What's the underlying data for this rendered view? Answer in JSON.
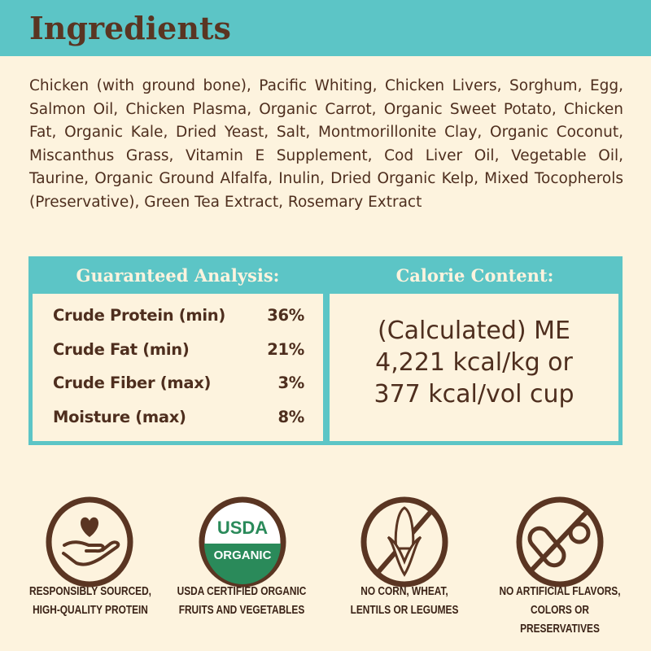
{
  "title": "Ingredients",
  "ingredients": "Chicken (with ground bone), Pacific Whiting, Chicken Livers, Sorghum, Egg, Salmon Oil, Chicken Plasma, Organic Carrot, Organic Sweet Potato, Chicken Fat, Organic Kale, Dried Yeast, Salt, Montmorillonite Clay, Organic Coconut, Miscanthus Grass, Vitamin E Supplement, Cod Liver Oil, Vegetable Oil, Taurine, Organic Ground Alfalfa, Inulin, Dried Organic Kelp, Mixed Tocopherols (Preservative), Green Tea Extract, Rosemary Extract",
  "analysis": {
    "heading": "Guaranteed Analysis:",
    "rows": [
      {
        "label": "Crude Protein (min)",
        "value": "36%"
      },
      {
        "label": "Crude Fat (min)",
        "value": "21%"
      },
      {
        "label": "Crude Fiber (max)",
        "value": "3%"
      },
      {
        "label": "Moisture (max)",
        "value": "8%"
      }
    ]
  },
  "calorie": {
    "heading": "Calorie Content:",
    "lines": [
      "(Calculated) ME",
      "4,221 kcal/kg or",
      "377 kcal/vol cup"
    ]
  },
  "badges": [
    {
      "icon": "heart-hand-icon",
      "line1": "RESPONSIBLY SOURCED,",
      "line2": "HIGH-QUALITY PROTEIN"
    },
    {
      "icon": "usda-organic-seal",
      "seal_top": "USDA",
      "seal_bottom": "ORGANIC",
      "line1": "USDA CERTIFIED ORGANIC",
      "line2": "FRUITS AND VEGETABLES"
    },
    {
      "icon": "no-corn-icon",
      "line1": "NO CORN, WHEAT,",
      "line2": "LENTILS OR LEGUMES"
    },
    {
      "icon": "no-pill-icon",
      "line1": "NO ARTIFICIAL FLAVORS,",
      "line2": "COLORS OR PRESERVATIVES"
    }
  ],
  "colors": {
    "teal": "#5cc5c6",
    "cream": "#fdf3de",
    "brown": "#5a3522",
    "green": "#2a8a5a"
  }
}
